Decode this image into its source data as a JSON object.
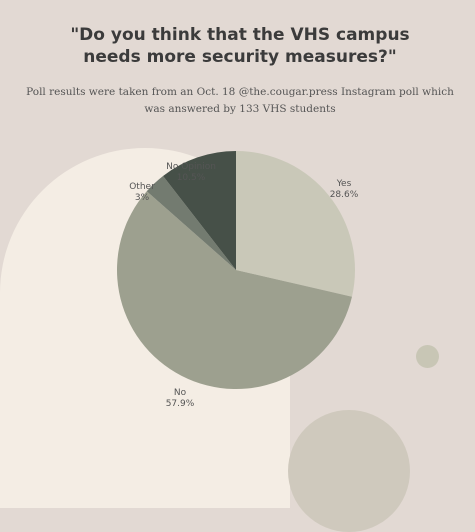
{
  "title": "\"Do you think that the VHS campus needs more security measures?\"",
  "subtitle": "Poll results were taken from an Oct. 18 @the.cougar.press Instagram poll which was answered by 133 VHS students",
  "chart_data": {
    "type": "pie",
    "title": "\"Do you think that the VHS campus needs more security measures?\"",
    "slices": [
      {
        "label": "Yes",
        "value": 28.6,
        "display": "28.6%",
        "color": "#c9c8b8"
      },
      {
        "label": "No",
        "value": 57.9,
        "display": "57.9%",
        "color": "#9da08f"
      },
      {
        "label": "Other",
        "value": 3,
        "display": "3%",
        "color": "#737b70"
      },
      {
        "label": "No Opinion",
        "value": 10.5,
        "display": "10.5%",
        "color": "#465048"
      }
    ]
  }
}
